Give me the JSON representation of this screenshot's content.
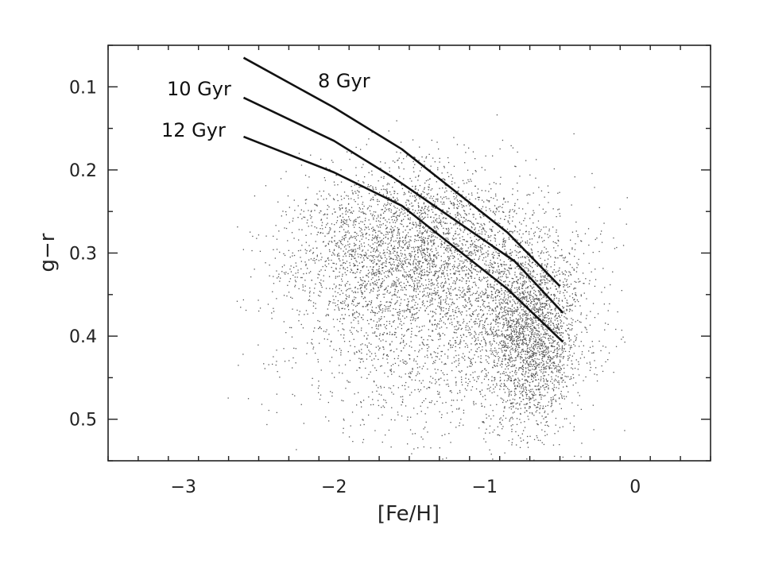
{
  "chart_data": {
    "type": "scatter",
    "title": "",
    "xlabel": "[Fe/H]",
    "ylabel": "g−r",
    "xlim": [
      -3.5,
      0.5
    ],
    "ylim": [
      0.55,
      0.05
    ],
    "y_axis_inverted": true,
    "grid": false,
    "x_ticks": [
      -3,
      -2,
      -1,
      0
    ],
    "x_tick_labels": [
      "−3",
      "−2",
      "−1",
      "0"
    ],
    "y_ticks": [
      0.1,
      0.2,
      0.3,
      0.4,
      0.5
    ],
    "y_tick_labels": [
      "0.1",
      "0.2",
      "0.3",
      "0.4",
      "0.5"
    ],
    "series": [
      {
        "name": "8 Gyr",
        "kind": "line",
        "x": [
          -2.6,
          -2.0,
          -1.55,
          -0.85,
          -0.5
        ],
        "y": [
          0.065,
          0.125,
          0.175,
          0.275,
          0.34
        ]
      },
      {
        "name": "10 Gyr",
        "kind": "line",
        "x": [
          -2.6,
          -2.0,
          -1.6,
          -0.8,
          -0.48
        ],
        "y": [
          0.113,
          0.165,
          0.21,
          0.31,
          0.372
        ]
      },
      {
        "name": "12 Gyr",
        "kind": "line",
        "x": [
          -2.6,
          -2.0,
          -1.55,
          -0.85,
          -0.48
        ],
        "y": [
          0.16,
          0.203,
          0.243,
          0.343,
          0.407
        ]
      }
    ]
  }
}
